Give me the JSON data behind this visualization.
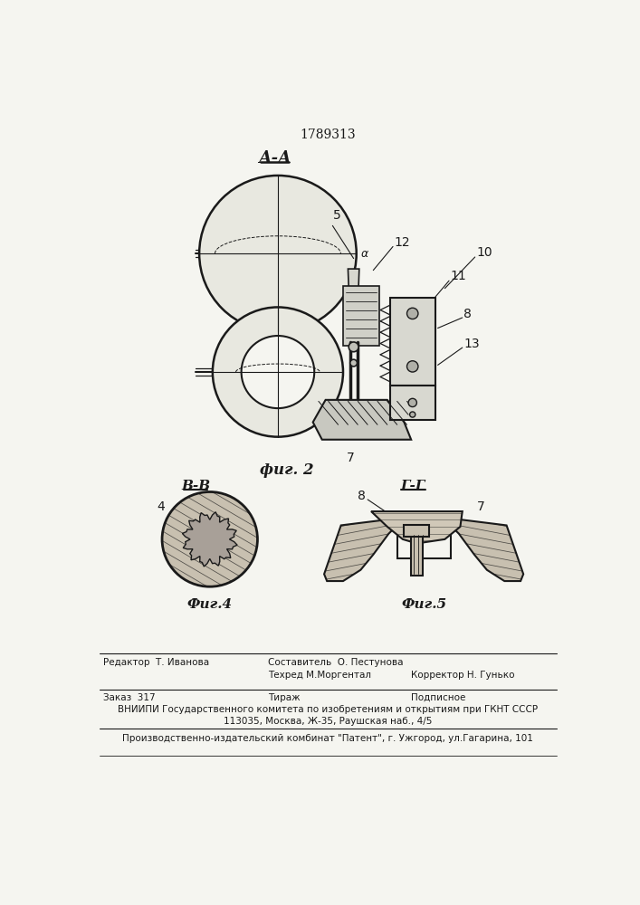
{
  "patent_number": "1789313",
  "background_color": "#f5f5f0",
  "line_color": "#1a1a1a",
  "fig2_caption": "фиг. 2",
  "fig4_label": "В-В",
  "fig4_caption": "Фиг.4",
  "fig5_label": "Г-Г",
  "fig5_caption": "Фиг.5",
  "footer_editor": "Редактор  Т. Иванова",
  "footer_comp": "Составитель  О. Пестунова",
  "footer_tech": "Техред М.Моргентал",
  "footer_corr": "Корректор Н. Гунько",
  "footer_order": "Заказ  317",
  "footer_circ": "Тираж",
  "footer_sub": "Подписное",
  "footer_vniip1": "ВНИИПИ Государственного комитета по изобретениям и открытиям при ГКНТ СССР",
  "footer_vniip2": "113035, Москва, Ж-35, Раушская наб., 4/5",
  "footer_patent": "Производственно-издательский комбинат \"Патент\", г. Ужгород, ул.Гагарина, 101"
}
